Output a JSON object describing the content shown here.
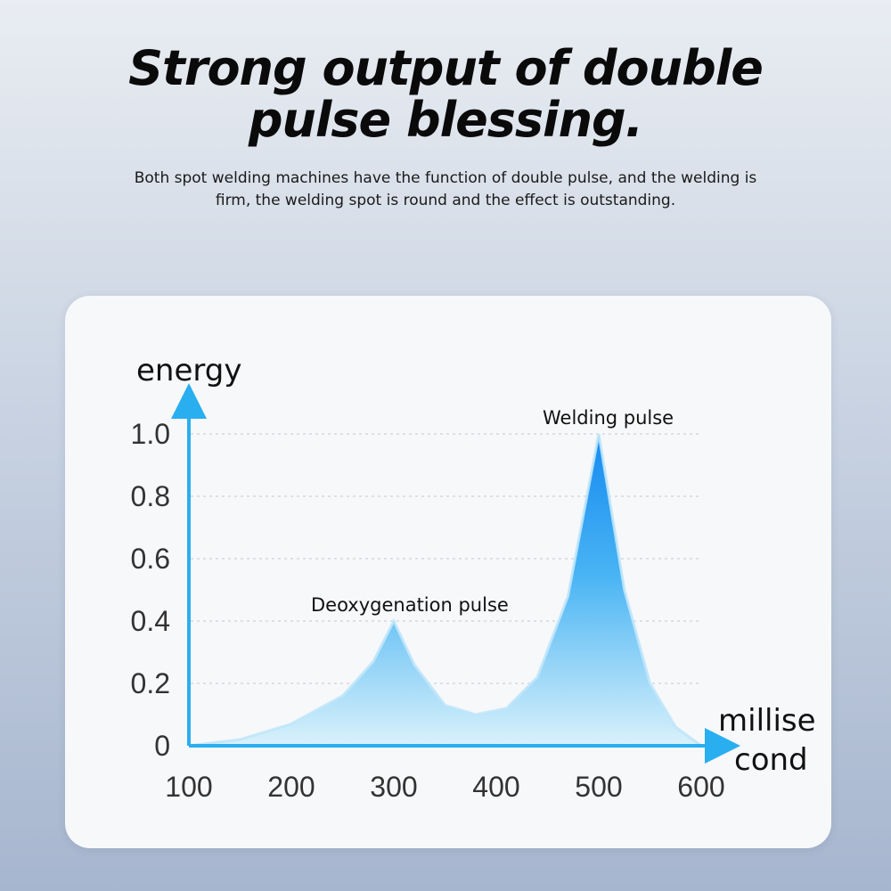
{
  "header": {
    "title_line1": "Strong output of double",
    "title_line2": "pulse blessing.",
    "description": "Both spot welding machines have the function of double pulse, and the welding is firm, the welding spot is round and the effect is outstanding."
  },
  "colors": {
    "axis": "#29aef0",
    "area_top": "#0a84f0",
    "area_bottom": "#d8f1fb",
    "grid": "#d4d8de"
  },
  "chart_data": {
    "type": "area",
    "ylabel": "energy",
    "xlabel_lines": [
      "millise",
      "cond"
    ],
    "x_ticks": [
      "100",
      "200",
      "300",
      "400",
      "500",
      "600"
    ],
    "y_ticks": [
      "0",
      "0.2",
      "0.4",
      "0.6",
      "0.8",
      "1.0"
    ],
    "xlim": [
      100,
      600
    ],
    "ylim": [
      0,
      1.0
    ],
    "grid": "dotted horizontal",
    "series": [
      {
        "points": [
          [
            100,
            0.0
          ],
          [
            150,
            0.02
          ],
          [
            200,
            0.07
          ],
          [
            250,
            0.16
          ],
          [
            280,
            0.27
          ],
          [
            300,
            0.4
          ],
          [
            320,
            0.26
          ],
          [
            350,
            0.13
          ],
          [
            380,
            0.1
          ],
          [
            410,
            0.12
          ],
          [
            440,
            0.22
          ],
          [
            470,
            0.48
          ],
          [
            500,
            1.0
          ],
          [
            525,
            0.5
          ],
          [
            550,
            0.2
          ],
          [
            575,
            0.06
          ],
          [
            600,
            0.0
          ]
        ]
      }
    ],
    "annotations": [
      {
        "text": "Deoxygenation pulse",
        "x": 300,
        "y": 0.4
      },
      {
        "text": "Welding pulse",
        "x": 500,
        "y": 1.0
      }
    ]
  }
}
